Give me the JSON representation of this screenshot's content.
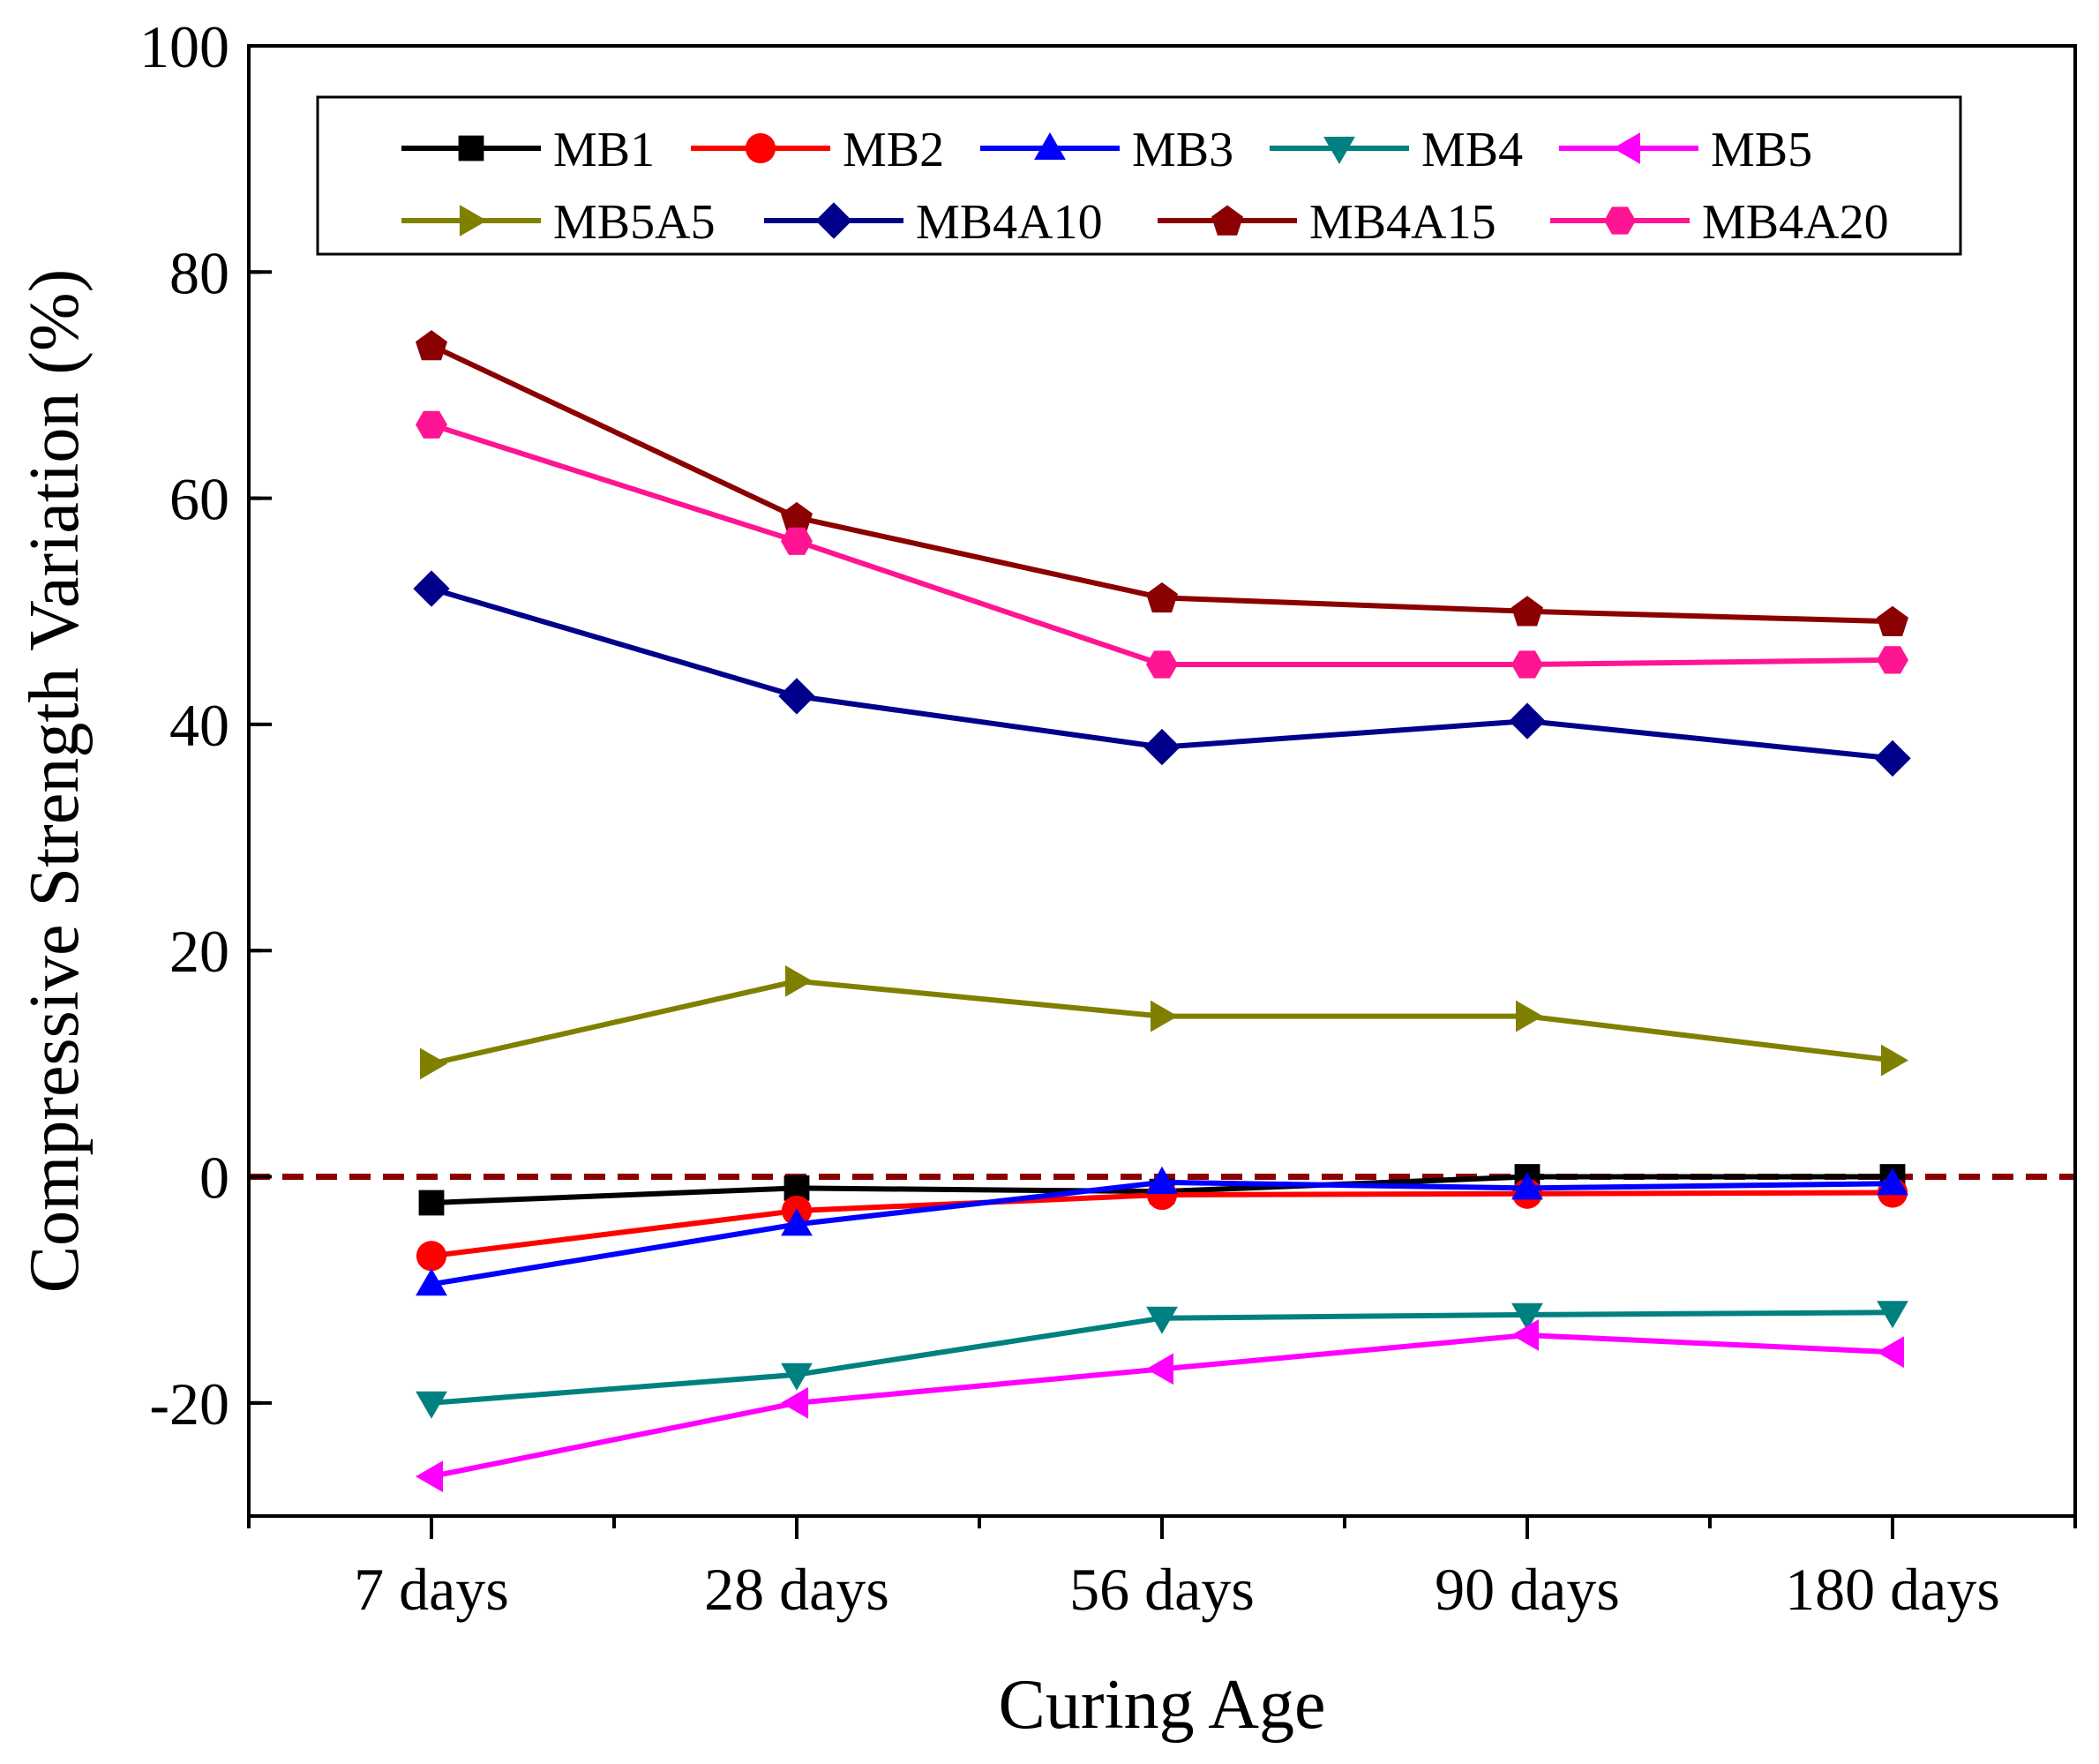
{
  "chart_data": {
    "type": "line",
    "title": "",
    "xlabel": "Curing Age",
    "ylabel": "Compressive Strength Variation (%)",
    "categories": [
      "7 days",
      "28 days",
      "56 days",
      "90 days",
      "180 days"
    ],
    "ylim": [
      -30,
      100
    ],
    "yticks": [
      -20,
      0,
      20,
      40,
      60,
      80,
      100
    ],
    "grid": false,
    "legend_position": "top",
    "reference_line": {
      "y": 0,
      "color": "#8b0000",
      "style": "dashed"
    },
    "series": [
      {
        "name": "MB1",
        "color": "#000000",
        "marker": "square",
        "values": [
          -2.3,
          -1,
          -1.3,
          0,
          0
        ]
      },
      {
        "name": "MB2",
        "color": "#ff0000",
        "marker": "circle",
        "values": [
          -7,
          -3,
          -1.6,
          -1.5,
          -1.4
        ]
      },
      {
        "name": "MB3",
        "color": "#0000ff",
        "marker": "triangle-up",
        "values": [
          -9.5,
          -4.2,
          -0.5,
          -1,
          -0.6
        ]
      },
      {
        "name": "MB4",
        "color": "#008080",
        "marker": "triangle-down",
        "values": [
          -20,
          -17.5,
          -12.5,
          -12.2,
          -12
        ]
      },
      {
        "name": "MB5",
        "color": "#ff00ff",
        "marker": "triangle-left",
        "values": [
          -26.5,
          -20,
          -17,
          -14,
          -15.5
        ]
      },
      {
        "name": "MB5A5",
        "color": "#808000",
        "marker": "triangle-right",
        "values": [
          10,
          17.3,
          14.2,
          14.2,
          10.3
        ]
      },
      {
        "name": "MB4A10",
        "color": "#00008b",
        "marker": "diamond",
        "values": [
          52,
          42.5,
          38,
          40.3,
          37
        ]
      },
      {
        "name": "MB4A15",
        "color": "#8b0000",
        "marker": "pentagon",
        "values": [
          73.5,
          58.3,
          51.2,
          50,
          49.1
        ]
      },
      {
        "name": "MB4A20",
        "color": "#ff1493",
        "marker": "hexagon",
        "values": [
          66.5,
          56.2,
          45.3,
          45.3,
          45.7
        ]
      }
    ]
  }
}
